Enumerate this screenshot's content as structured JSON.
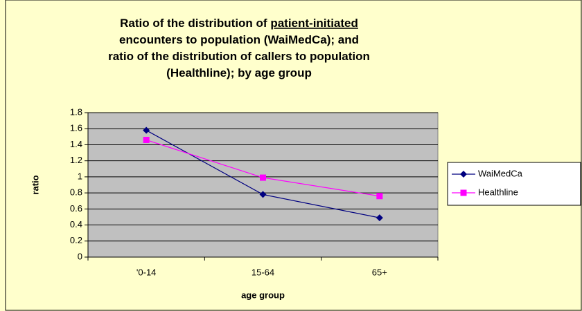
{
  "chart_data": {
    "type": "line",
    "title_lines": [
      [
        {
          "text": "Ratio of the distribution of "
        },
        {
          "text": "patient-initiated ",
          "underline": true
        }
      ],
      [
        {
          "text": "encounters to population (WaiMedCa); and"
        }
      ],
      [
        {
          "text": "ratio of the distribution of callers to population"
        }
      ],
      [
        {
          "text": "(Healthline); by age group"
        }
      ]
    ],
    "x_label": "age group",
    "y_label": "ratio",
    "categories": [
      "'0-14",
      "15-64",
      "65+"
    ],
    "series": [
      {
        "name": "WaiMedCa",
        "color": "#000080",
        "marker": "diamond",
        "values": [
          1.58,
          0.78,
          0.49
        ]
      },
      {
        "name": "Healthline",
        "color": "#ff00ff",
        "marker": "square",
        "values": [
          1.46,
          0.99,
          0.76
        ]
      }
    ],
    "ylim": [
      0,
      1.8
    ],
    "yticks": [
      0,
      0.2,
      0.4,
      0.6,
      0.8,
      1,
      1.2,
      1.4,
      1.6,
      1.8
    ],
    "grid": true,
    "plot_background": "#c0c0c0",
    "legend": "right"
  }
}
